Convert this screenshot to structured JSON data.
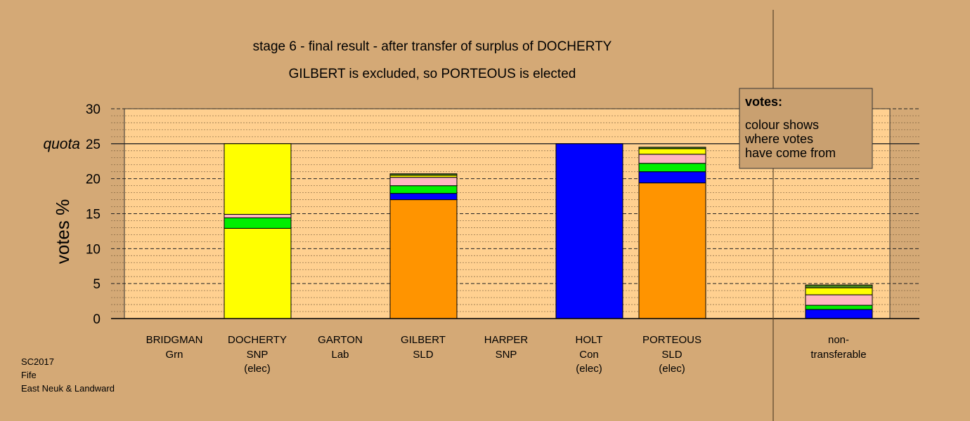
{
  "chart_data": {
    "type": "bar",
    "stacked": true,
    "title": "stage 6 - final result - after transfer of surplus of DOCHERTY",
    "subtitle": "GILBERT is excluded, so PORTEOUS is elected",
    "ylabel": "votes %",
    "ylim": [
      0,
      30
    ],
    "yticks": [
      0,
      5,
      10,
      15,
      20,
      25,
      30
    ],
    "quota": {
      "value": 25,
      "label": "quota"
    },
    "grid": true,
    "bars": [
      {
        "name": "BRIDGMAN",
        "party": "Grn",
        "note": "",
        "segments": []
      },
      {
        "name": "DOCHERTY",
        "party": "SNP",
        "note": "(elec)",
        "segments": [
          {
            "color": "#ffff00",
            "value": 12.9
          },
          {
            "color": "#00ee00",
            "value": 1.5
          },
          {
            "color": "#ffb6c1",
            "value": 0.5
          },
          {
            "color": "#ffff00",
            "value": 10.1
          }
        ]
      },
      {
        "name": "GARTON",
        "party": "Lab",
        "note": "",
        "segments": []
      },
      {
        "name": "GILBERT",
        "party": "SLD",
        "note": "",
        "segments": [
          {
            "color": "#ff9400",
            "value": 17.0
          },
          {
            "color": "#0000ff",
            "value": 0.9
          },
          {
            "color": "#00ee00",
            "value": 1.1
          },
          {
            "color": "#ffb6c1",
            "value": 1.2
          },
          {
            "color": "#ffff00",
            "value": 0.3
          },
          {
            "color": "#4a8a20",
            "value": 0.2
          }
        ]
      },
      {
        "name": "HARPER",
        "party": "SNP",
        "note": "",
        "segments": []
      },
      {
        "name": "HOLT",
        "party": "Con",
        "note": "(elec)",
        "segments": [
          {
            "color": "#0000ff",
            "value": 25.0
          }
        ]
      },
      {
        "name": "PORTEOUS",
        "party": "SLD",
        "note": "(elec)",
        "segments": [
          {
            "color": "#ff9400",
            "value": 19.4
          },
          {
            "color": "#0000ff",
            "value": 1.6
          },
          {
            "color": "#00ee00",
            "value": 1.2
          },
          {
            "color": "#ffb6c1",
            "value": 1.3
          },
          {
            "color": "#ffff00",
            "value": 0.8
          },
          {
            "color": "#4a8a20",
            "value": 0.2
          }
        ]
      }
    ],
    "nontransferable": {
      "label_line1": "non-",
      "label_line2": "transferable",
      "segments": [
        {
          "color": "#0000ff",
          "value": 1.3
        },
        {
          "color": "#00ee00",
          "value": 0.6
        },
        {
          "color": "#ffb6c1",
          "value": 1.5
        },
        {
          "color": "#ffff00",
          "value": 1.0
        },
        {
          "color": "#4a8a20",
          "value": 0.4
        }
      ]
    },
    "legend": {
      "title": "votes:",
      "lines": [
        "colour shows",
        "where votes",
        "have come from"
      ]
    }
  },
  "footer": {
    "line1": "SC2017",
    "line2": "Fife",
    "line3": "East Neuk & Landward"
  },
  "colors": {
    "background": "#d4a976",
    "plot_area": "#ffd090",
    "legend_box": "#c9a070"
  }
}
